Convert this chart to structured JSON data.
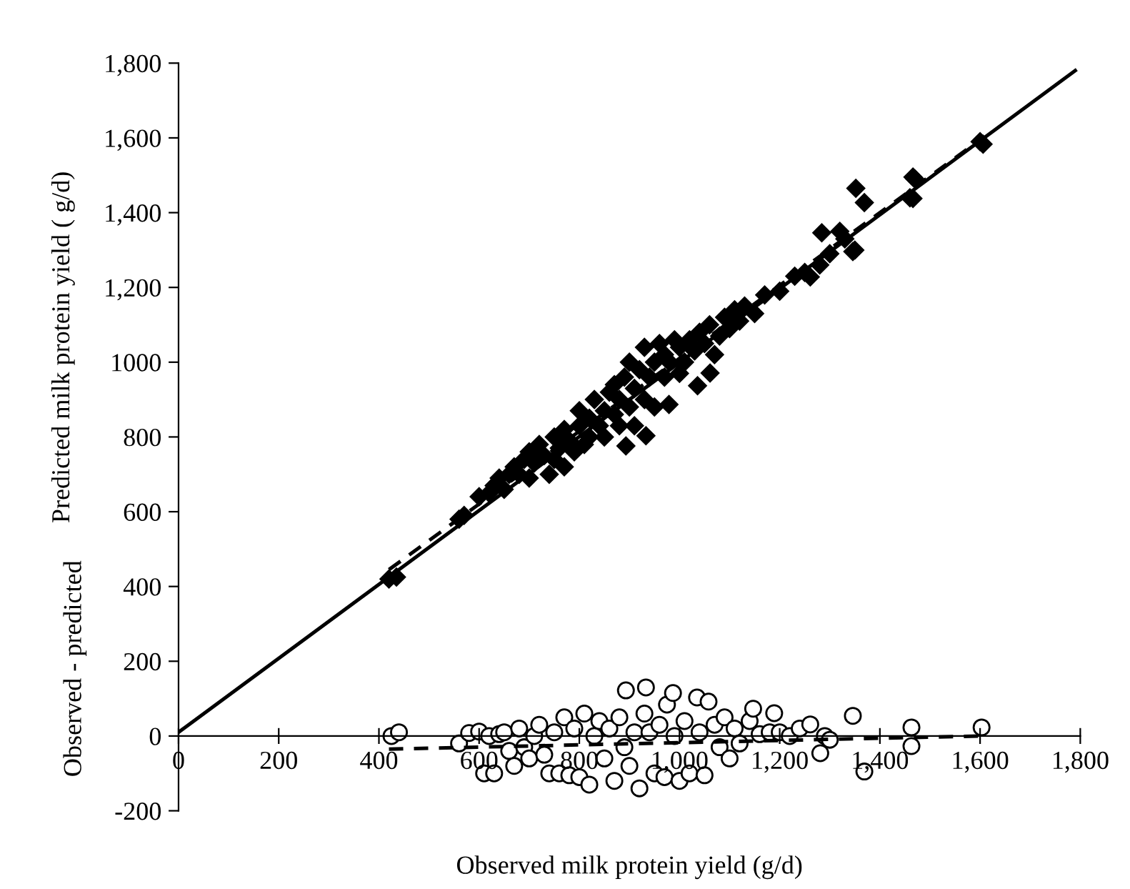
{
  "chart_data": {
    "type": "scatter",
    "xlabel": "Observed milk protein yield (g/d)",
    "ylabel": "Predicted milk protein yield ( g/d)",
    "annotations": [
      "Observed - predicted"
    ],
    "xlim": [
      0,
      1800
    ],
    "ylim": [
      -200,
      1800
    ],
    "xticks": [
      0,
      200,
      400,
      600,
      800,
      {
        "value": 1000,
        "label": "1,000"
      },
      {
        "value": 1200,
        "label": "1,200"
      },
      {
        "value": 1400,
        "label": "1,400"
      },
      {
        "value": 1600,
        "label": "1,600"
      },
      {
        "value": 1800,
        "label": "1,800"
      }
    ],
    "yticks": [
      -200,
      0,
      200,
      400,
      600,
      800,
      1000,
      {
        "value": 1200,
        "label": "1,200"
      },
      {
        "value": 1400,
        "label": "1,400"
      },
      {
        "value": 1600,
        "label": "1,600"
      },
      {
        "value": 1800,
        "label": "1,800"
      }
    ],
    "grid": false,
    "series": [
      {
        "marker": "diamond",
        "color": "#000000",
        "x": [
          420,
          435,
          560,
          570,
          600,
          620,
          630,
          640,
          650,
          660,
          670,
          680,
          690,
          700,
          700,
          710,
          720,
          730,
          740,
          750,
          750,
          760,
          770,
          770,
          780,
          790,
          800,
          800,
          810,
          820,
          820,
          830,
          840,
          850,
          850,
          860,
          870,
          870,
          880,
          880,
          890,
          900,
          900,
          910,
          910,
          920,
          930,
          930,
          940,
          950,
          950,
          960,
          970,
          970,
          980,
          990,
          1000,
          1000,
          1010,
          1020,
          1030,
          1040,
          1050,
          1060,
          1070,
          1080,
          1090,
          1100,
          1110,
          1120,
          1130,
          1150,
          1170,
          1200,
          1230,
          1250,
          1280,
          1300,
          1320,
          1330,
          1350,
          1460,
          1470,
          1600,
          893,
          933,
          979,
          1036,
          1061,
          1352,
          1369,
          1466,
          1466,
          1606,
          1346,
          1284,
          1261
        ],
        "values": [
          420,
          425,
          580,
          590,
          640,
          650,
          670,
          690,
          660,
          700,
          720,
          700,
          740,
          760,
          690,
          730,
          780,
          750,
          700,
          800,
          740,
          770,
          820,
          720,
          790,
          760,
          830,
          870,
          780,
          850,
          800,
          900,
          830,
          870,
          800,
          920,
          860,
          940,
          900,
          830,
          960,
          880,
          1000,
          930,
          830,
          980,
          900,
          1040,
          960,
          1000,
          880,
          1050,
          960,
          1020,
          1000,
          1060,
          970,
          1040,
          1000,
          1060,
          1030,
          1080,
          1050,
          1100,
          1020,
          1070,
          1120,
          1090,
          1140,
          1110,
          1150,
          1130,
          1180,
          1190,
          1230,
          1240,
          1260,
          1290,
          1350,
          1330,
          1300,
          1440,
          1490,
          1590,
          776,
          803,
          887,
          937,
          971,
          1465,
          1427,
          1495,
          1438,
          1583,
          1296,
          1346,
          1228
        ]
      },
      {
        "marker": "circle",
        "color": "#ffffff",
        "x": [
          425,
          440,
          560,
          580,
          600,
          610,
          620,
          630,
          640,
          650,
          660,
          670,
          680,
          690,
          700,
          710,
          720,
          730,
          740,
          750,
          760,
          770,
          780,
          790,
          800,
          810,
          820,
          830,
          840,
          850,
          860,
          870,
          880,
          890,
          893,
          900,
          910,
          920,
          930,
          933,
          940,
          950,
          960,
          970,
          975,
          987,
          990,
          1000,
          1010,
          1020,
          1035,
          1040,
          1050,
          1058,
          1070,
          1080,
          1090,
          1100,
          1110,
          1120,
          1140,
          1147,
          1160,
          1180,
          1189,
          1200,
          1220,
          1240,
          1261,
          1281,
          1290,
          1300,
          1346,
          1369,
          1463,
          1463,
          1603
        ],
        "values": [
          0,
          10,
          -20,
          8,
          12,
          -100,
          0,
          -100,
          5,
          10,
          -40,
          -80,
          20,
          -30,
          -60,
          0,
          30,
          -50,
          -100,
          10,
          -100,
          50,
          -105,
          20,
          -110,
          60,
          -130,
          0,
          40,
          -60,
          20,
          -120,
          50,
          -30,
          122,
          -80,
          10,
          -140,
          60,
          130,
          10,
          -100,
          30,
          -110,
          84,
          115,
          0,
          -120,
          40,
          -100,
          103,
          10,
          -105,
          92,
          30,
          -30,
          50,
          -60,
          20,
          -20,
          40,
          73,
          5,
          10,
          61,
          10,
          0,
          20,
          31,
          -46,
          0,
          -10,
          54,
          -95,
          23,
          -27,
          23
        ]
      },
      {
        "type": "line",
        "line_style": "solid",
        "color": "#000000",
        "x": [
          0,
          1790
        ],
        "values": [
          10,
          1780
        ]
      },
      {
        "type": "line",
        "line_style": "dashed",
        "color": "#000000",
        "x": [
          420,
          1600
        ],
        "values": [
          445,
          1595
        ]
      },
      {
        "type": "line",
        "line_style": "dashed",
        "color": "#000000",
        "x": [
          420,
          1600
        ],
        "values": [
          -35,
          0
        ]
      }
    ]
  }
}
